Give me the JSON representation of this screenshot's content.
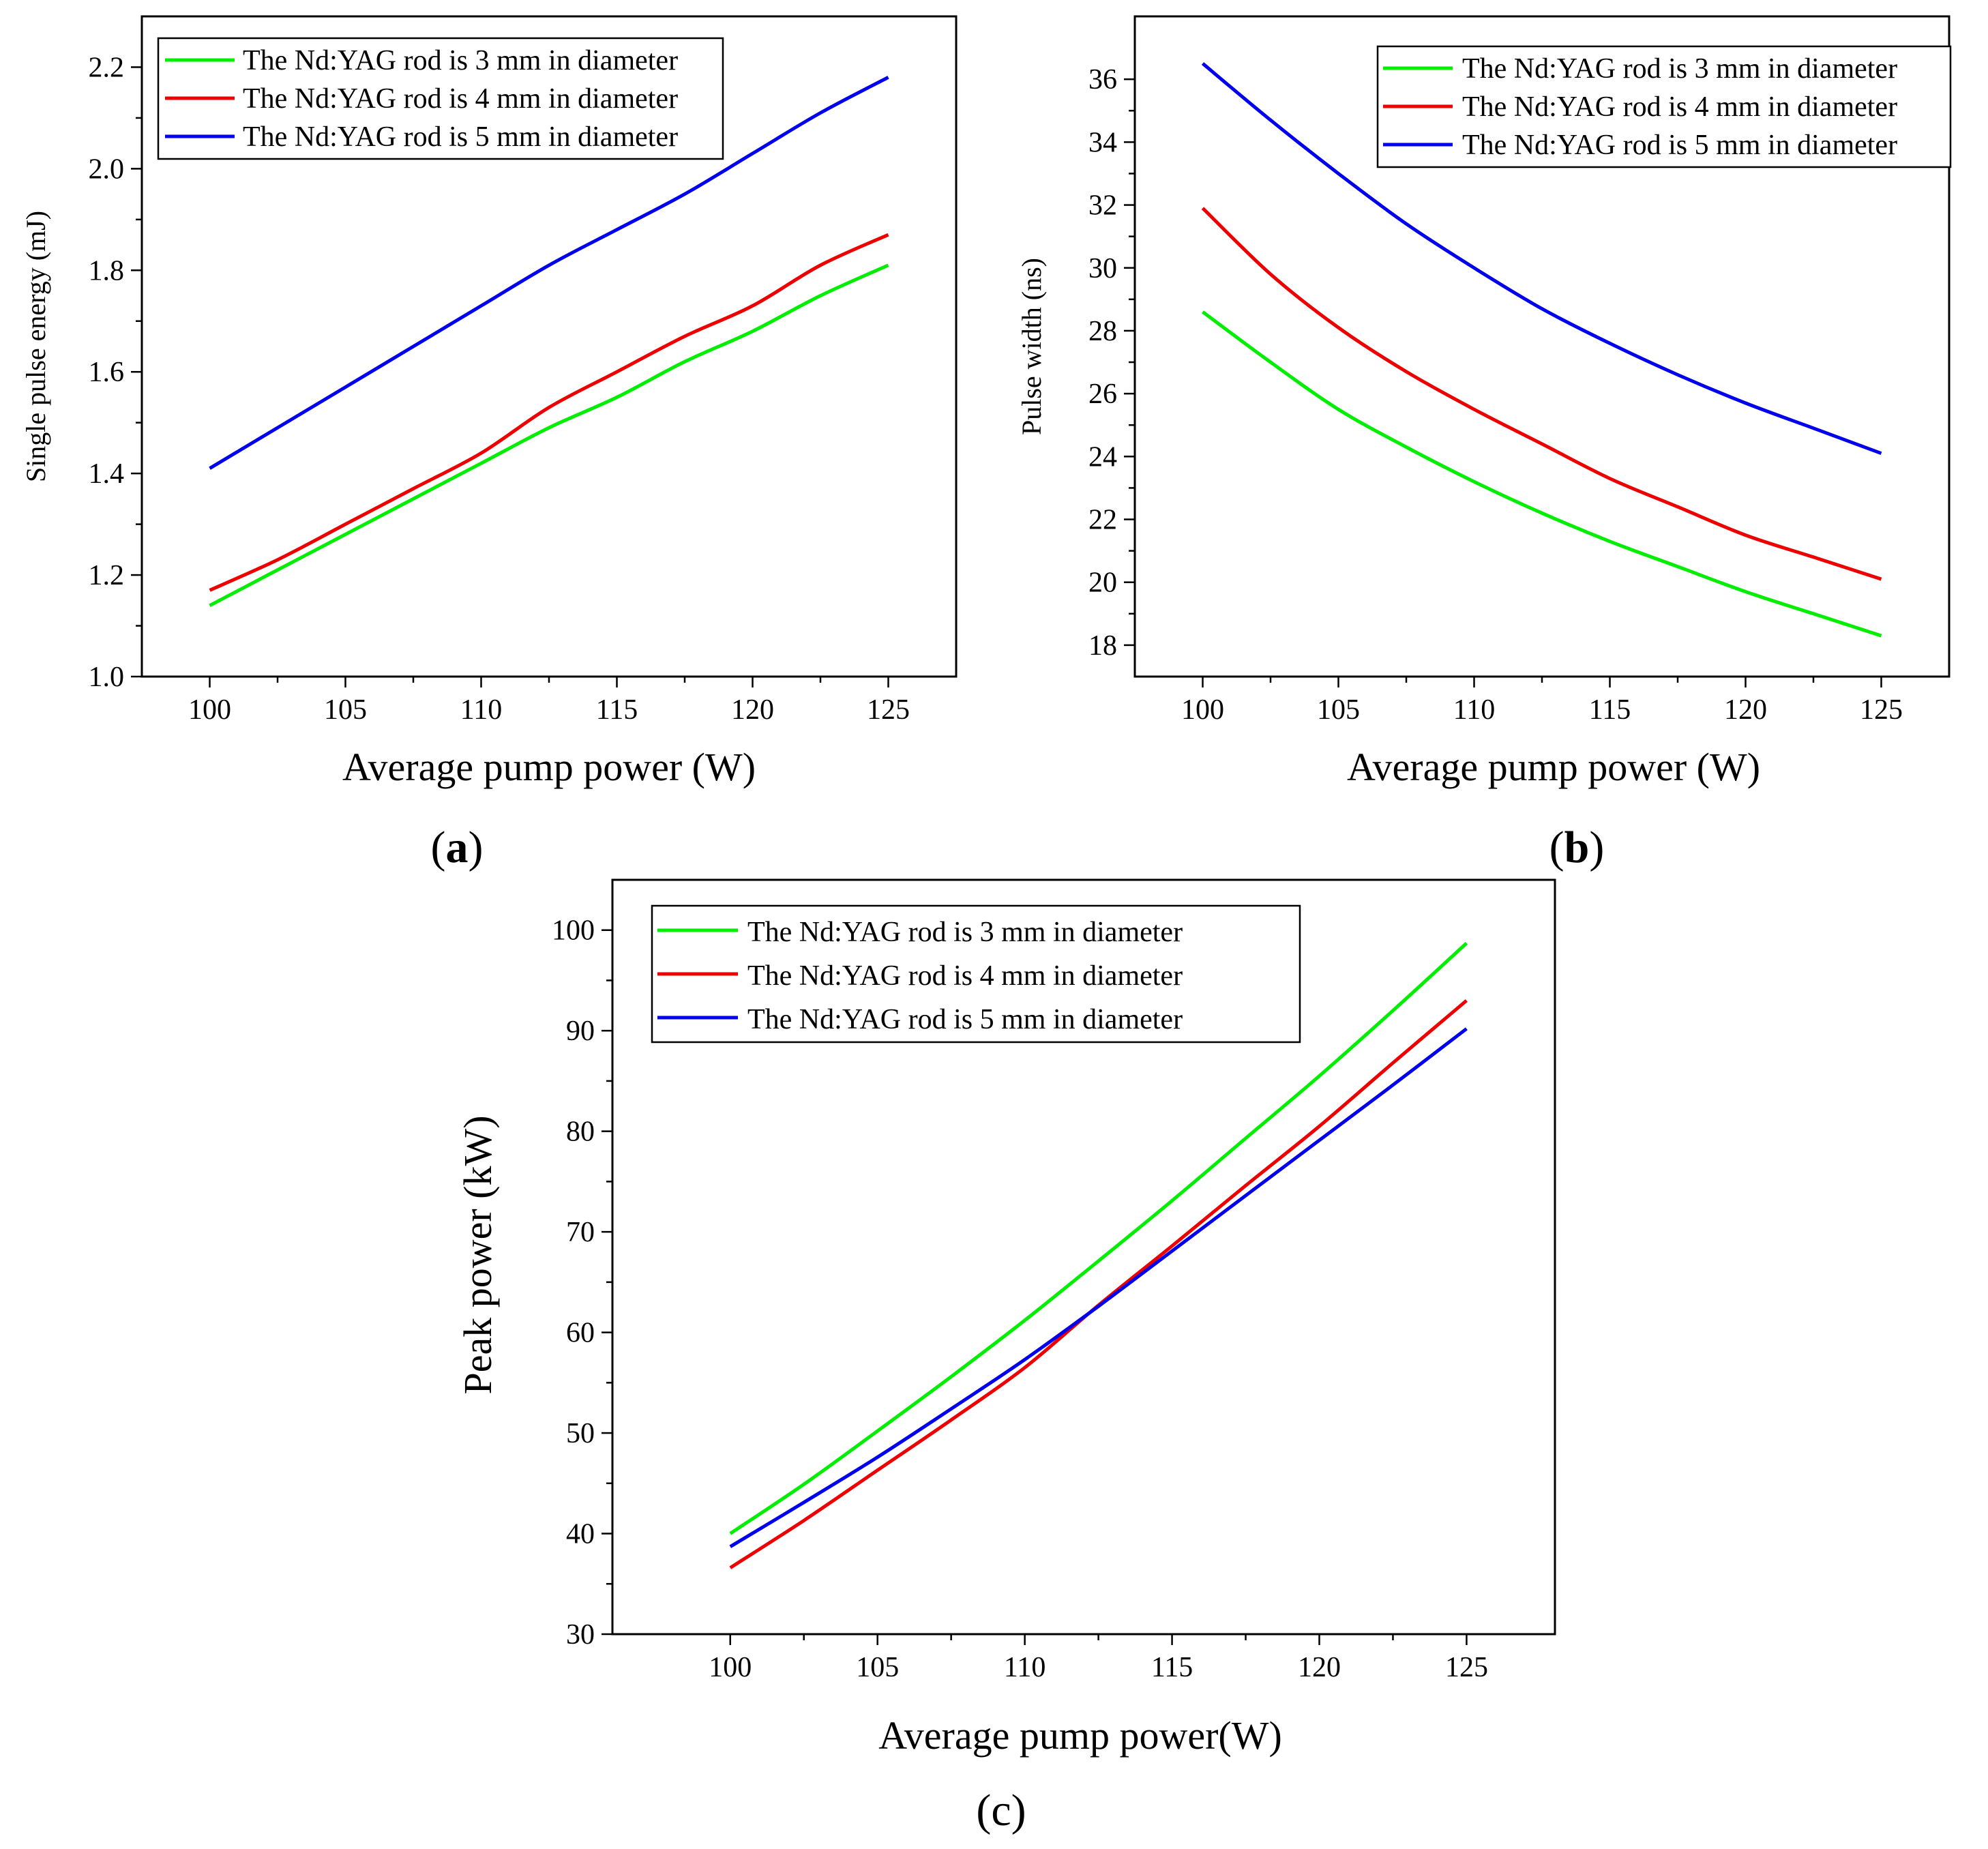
{
  "colors": {
    "green": "#00ee00",
    "red": "#ee0000",
    "blue": "#0000ee"
  },
  "chart_data": [
    {
      "id": "a",
      "type": "line",
      "panel_label": "a",
      "xlabel": "Average pump power (W)",
      "ylabel": "Single pulse energy (mJ)",
      "xlim": [
        97.5,
        127.5
      ],
      "ylim": [
        1.0,
        2.3
      ],
      "xticks": [
        100,
        105,
        110,
        115,
        120,
        125
      ],
      "yticks": [
        1.0,
        1.2,
        1.4,
        1.6,
        1.8,
        2.0,
        2.2
      ],
      "ytick_labels": [
        "1.0",
        "1.2",
        "1.4",
        "1.6",
        "1.8",
        "2.0",
        "2.2"
      ],
      "xtick_labels": [
        "100",
        "105",
        "110",
        "115",
        "120",
        "125"
      ],
      "legend_position": "top-left",
      "series": [
        {
          "name": "The Nd:YAG rod is 3 mm in diameter",
          "color": "#00ee00",
          "x": [
            100,
            102.5,
            105,
            107.5,
            110,
            112.5,
            115,
            117.5,
            120,
            122.5,
            125
          ],
          "y": [
            1.14,
            1.21,
            1.28,
            1.35,
            1.42,
            1.49,
            1.55,
            1.62,
            1.68,
            1.75,
            1.81
          ]
        },
        {
          "name": "The Nd:YAG rod is 4 mm in diameter",
          "color": "#ee0000",
          "x": [
            100,
            102.5,
            105,
            107.5,
            110,
            112.5,
            115,
            117.5,
            120,
            122.5,
            125
          ],
          "y": [
            1.17,
            1.23,
            1.3,
            1.37,
            1.44,
            1.53,
            1.6,
            1.67,
            1.73,
            1.81,
            1.87
          ]
        },
        {
          "name": "The Nd:YAG rod is 5 mm in diameter",
          "color": "#0000ee",
          "x": [
            100,
            102.5,
            105,
            107.5,
            110,
            112.5,
            115,
            117.5,
            120,
            122.5,
            125
          ],
          "y": [
            1.41,
            1.49,
            1.57,
            1.65,
            1.73,
            1.81,
            1.88,
            1.95,
            2.03,
            2.11,
            2.18
          ]
        }
      ]
    },
    {
      "id": "b",
      "type": "line",
      "panel_label": "b",
      "xlabel": "Average pump power (W)",
      "ylabel": "Pulse width (ns)",
      "xlim": [
        97.5,
        127.5
      ],
      "ylim": [
        17,
        38
      ],
      "xticks": [
        100,
        105,
        110,
        115,
        120,
        125
      ],
      "yticks": [
        18,
        20,
        22,
        24,
        26,
        28,
        30,
        32,
        34,
        36
      ],
      "ytick_labels": [
        "18",
        "20",
        "22",
        "24",
        "26",
        "28",
        "30",
        "32",
        "34",
        "36"
      ],
      "xtick_labels": [
        "100",
        "105",
        "110",
        "115",
        "120",
        "125"
      ],
      "legend_position": "top-right",
      "series": [
        {
          "name": "The Nd:YAG rod is 3 mm in diameter",
          "color": "#00ee00",
          "x": [
            100,
            102.5,
            105,
            107.5,
            110,
            112.5,
            115,
            117.5,
            120,
            122.5,
            125
          ],
          "y": [
            28.6,
            27.0,
            25.5,
            24.3,
            23.2,
            22.2,
            21.3,
            20.5,
            19.7,
            19.0,
            18.3
          ]
        },
        {
          "name": "The Nd:YAG rod is 4 mm in diameter",
          "color": "#ee0000",
          "x": [
            100,
            102.5,
            105,
            107.5,
            110,
            112.5,
            115,
            117.5,
            120,
            122.5,
            125
          ],
          "y": [
            31.9,
            29.8,
            28.1,
            26.7,
            25.5,
            24.4,
            23.3,
            22.4,
            21.5,
            20.8,
            20.1
          ]
        },
        {
          "name": "The Nd:YAG rod is 5 mm in diameter",
          "color": "#0000ee",
          "x": [
            100,
            102.5,
            105,
            107.5,
            110,
            112.5,
            115,
            117.5,
            120,
            122.5,
            125
          ],
          "y": [
            36.5,
            34.7,
            33.0,
            31.4,
            30.0,
            28.7,
            27.6,
            26.6,
            25.7,
            24.9,
            24.1
          ]
        }
      ]
    },
    {
      "id": "c",
      "type": "line",
      "panel_label": "c",
      "xlabel": "Average pump power(W)",
      "ylabel": "Peak power  (kW)",
      "xlim": [
        96,
        128
      ],
      "ylim": [
        30,
        105
      ],
      "xticks": [
        100,
        105,
        110,
        115,
        120,
        125
      ],
      "yticks": [
        30,
        40,
        50,
        60,
        70,
        80,
        90,
        100
      ],
      "ytick_labels": [
        "30",
        "40",
        "50",
        "60",
        "70",
        "80",
        "90",
        "100"
      ],
      "xtick_labels": [
        "100",
        "105",
        "110",
        "115",
        "120",
        "125"
      ],
      "legend_position": "top-left",
      "series": [
        {
          "name": "The Nd:YAG rod is 3 mm in diameter",
          "color": "#00ee00",
          "x": [
            100,
            102.5,
            105,
            107.5,
            110,
            112.5,
            115,
            117.5,
            120,
            122.5,
            125
          ],
          "y": [
            40.0,
            44.9,
            50.2,
            55.6,
            61.2,
            67.1,
            73.1,
            79.3,
            85.5,
            92.0,
            98.7
          ]
        },
        {
          "name": "The Nd:YAG rod is 4 mm in diameter",
          "color": "#ee0000",
          "x": [
            100,
            102.5,
            105,
            107.5,
            110,
            112.5,
            115,
            117.5,
            120,
            122.5,
            125
          ],
          "y": [
            36.6,
            41.3,
            46.3,
            51.3,
            56.5,
            62.7,
            68.6,
            74.6,
            80.5,
            86.8,
            93.0
          ]
        },
        {
          "name": "The Nd:YAG rod is 5 mm in diameter",
          "color": "#0000ee",
          "x": [
            100,
            102.5,
            105,
            107.5,
            110,
            112.5,
            115,
            117.5,
            120,
            122.5,
            125
          ],
          "y": [
            38.7,
            43.1,
            47.6,
            52.4,
            57.3,
            62.6,
            68.1,
            73.6,
            79.1,
            84.6,
            90.2
          ]
        }
      ]
    }
  ]
}
